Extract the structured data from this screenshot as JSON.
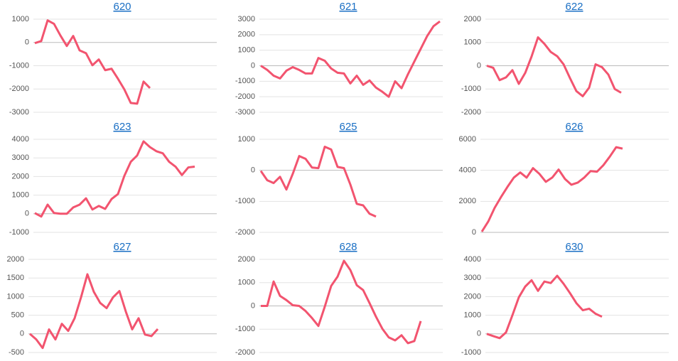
{
  "chart_data": [
    {
      "type": "line",
      "title": "620",
      "color": "#f2546f",
      "ylim": [
        -3000,
        1000
      ],
      "yticks": [
        -3000,
        -2000,
        -1000,
        0,
        1000
      ],
      "grid": true,
      "values": [
        -30,
        60,
        950,
        800,
        300,
        -150,
        280,
        -340,
        -460,
        -980,
        -730,
        -1190,
        -1130,
        -1560,
        -2020,
        -2600,
        -2630,
        -1680,
        -1960
      ]
    },
    {
      "type": "line",
      "title": "621",
      "color": "#f2546f",
      "ylim": [
        -3000,
        3000
      ],
      "yticks": [
        -3000,
        -2000,
        -1000,
        0,
        1000,
        2000,
        3000
      ],
      "grid": true,
      "values": [
        0,
        -270,
        -640,
        -820,
        -320,
        -90,
        -270,
        -500,
        -500,
        500,
        320,
        -180,
        -450,
        -500,
        -1140,
        -640,
        -1230,
        -950,
        -1410,
        -1680,
        -2000,
        -1000,
        -1450,
        -550,
        270,
        1090,
        1910,
        2550,
        2860
      ]
    },
    {
      "type": "line",
      "title": "622",
      "color": "#f2546f",
      "ylim": [
        -2000,
        2000
      ],
      "yticks": [
        -2000,
        -1000,
        0,
        1000,
        2000
      ],
      "grid": true,
      "values": [
        0,
        -90,
        -620,
        -500,
        -190,
        -780,
        -310,
        400,
        1220,
        940,
        590,
        410,
        60,
        -530,
        -1090,
        -1310,
        -940,
        60,
        -60,
        -380,
        -1000,
        -1160
      ]
    },
    {
      "type": "line",
      "title": "623",
      "color": "#f2546f",
      "ylim": [
        -1000,
        4000
      ],
      "yticks": [
        -1000,
        0,
        1000,
        2000,
        3000,
        4000
      ],
      "grid": true,
      "values": [
        40,
        -150,
        490,
        40,
        0,
        0,
        340,
        490,
        830,
        230,
        420,
        260,
        790,
        1060,
        2040,
        2790,
        3130,
        3890,
        3580,
        3360,
        3250,
        2790,
        2530,
        2080,
        2490,
        2530
      ]
    },
    {
      "type": "line",
      "title": "625",
      "color": "#f2546f",
      "ylim": [
        -2000,
        1000
      ],
      "yticks": [
        -2000,
        -1000,
        0,
        1000
      ],
      "grid": true,
      "values": [
        -20,
        -320,
        -410,
        -210,
        -620,
        -110,
        460,
        370,
        90,
        70,
        760,
        670,
        110,
        70,
        -460,
        -1080,
        -1130,
        -1400,
        -1490
      ]
    },
    {
      "type": "line",
      "title": "626",
      "color": "#f2546f",
      "ylim": [
        0,
        6000
      ],
      "yticks": [
        0,
        2000,
        4000,
        6000
      ],
      "grid": true,
      "values": [
        50,
        700,
        1580,
        2280,
        2930,
        3530,
        3860,
        3530,
        4140,
        3770,
        3260,
        3530,
        4050,
        3440,
        3070,
        3210,
        3530,
        3950,
        3910,
        4330,
        4880,
        5490,
        5400
      ]
    },
    {
      "type": "line",
      "title": "627",
      "color": "#f2546f",
      "ylim": [
        -500,
        2000
      ],
      "yticks": [
        -500,
        0,
        500,
        1000,
        1500,
        2000
      ],
      "grid": true,
      "values": [
        0,
        -150,
        -380,
        120,
        -150,
        270,
        80,
        420,
        980,
        1600,
        1130,
        830,
        690,
        980,
        1150,
        600,
        120,
        420,
        -20,
        -60,
        130
      ]
    },
    {
      "type": "line",
      "title": "628",
      "color": "#f2546f",
      "ylim": [
        -2000,
        2000
      ],
      "yticks": [
        -2000,
        -1000,
        0,
        1000,
        2000
      ],
      "grid": true,
      "values": [
        0,
        0,
        1050,
        430,
        250,
        30,
        0,
        -220,
        -520,
        -860,
        -30,
        860,
        1260,
        1940,
        1540,
        890,
        680,
        120,
        -460,
        -980,
        -1350,
        -1480,
        -1260,
        -1600,
        -1510,
        -650
      ]
    },
    {
      "type": "line",
      "title": "630",
      "color": "#f2546f",
      "ylim": [
        -1000,
        4000
      ],
      "yticks": [
        -1000,
        0,
        1000,
        2000,
        3000,
        4000
      ],
      "grid": true,
      "values": [
        0,
        -120,
        -230,
        80,
        1000,
        1960,
        2540,
        2880,
        2310,
        2810,
        2730,
        3120,
        2690,
        2190,
        1650,
        1270,
        1350,
        1080,
        920
      ]
    }
  ]
}
